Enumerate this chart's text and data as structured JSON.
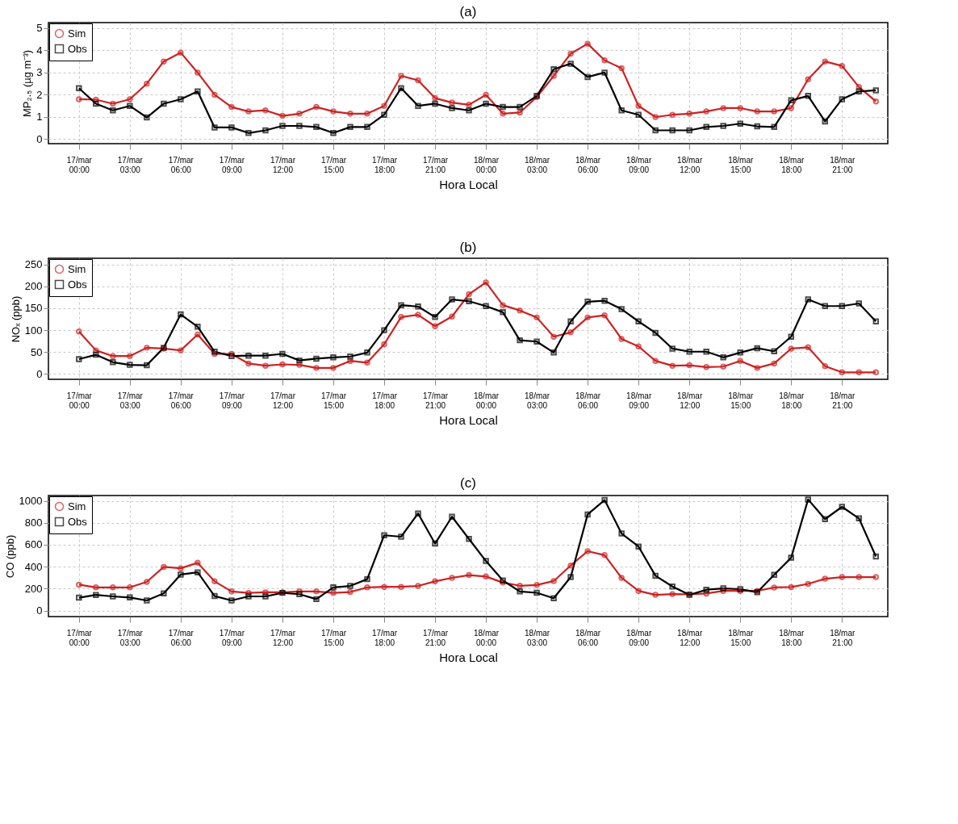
{
  "chart_data": [
    {
      "type": "line",
      "title": "(a)",
      "xlabel": "Hora Local",
      "ylabel": "MP₂.₅ (µg m⁻³)",
      "categories": [
        "17/mar 00:00",
        null,
        null,
        "17/mar 03:00",
        null,
        null,
        "17/mar 06:00",
        null,
        null,
        "17/mar 09:00",
        null,
        null,
        "17/mar 12:00",
        null,
        null,
        "17/mar 15:00",
        null,
        null,
        "17/mar 18:00",
        null,
        null,
        "17/mar 21:00",
        null,
        null,
        "18/mar 00:00",
        null,
        null,
        "18/mar 03:00",
        null,
        null,
        "18/mar 06:00",
        null,
        null,
        "18/mar 09:00",
        null,
        null,
        "18/mar 12:00",
        null,
        null,
        "18/mar 15:00",
        null,
        null,
        "18/mar 18:00",
        null,
        null,
        "18/mar 21:00",
        null,
        null
      ],
      "ylim": [
        -0.2,
        5.25
      ],
      "yticks": [
        0,
        1,
        2,
        3,
        4,
        5
      ],
      "grid": true,
      "legend": "top left",
      "line_style": "solid",
      "series": [
        {
          "name": "Sim",
          "color": "#cc2222",
          "marker": "circle",
          "values": [
            1.8,
            1.78,
            1.6,
            1.8,
            2.5,
            3.5,
            3.9,
            3.0,
            2.0,
            1.45,
            1.25,
            1.3,
            1.05,
            1.15,
            1.45,
            1.25,
            1.15,
            1.15,
            1.5,
            2.85,
            2.65,
            1.85,
            1.65,
            1.55,
            2.0,
            1.15,
            1.2,
            1.9,
            2.85,
            3.85,
            4.3,
            3.55,
            3.2,
            1.5,
            1.0,
            1.1,
            1.15,
            1.25,
            1.4,
            1.4,
            1.25,
            1.25,
            1.4,
            2.7,
            3.5,
            3.3,
            2.35,
            1.7
          ]
        },
        {
          "name": "Obs",
          "color": "#000000",
          "marker": "square",
          "values": [
            2.3,
            1.6,
            1.3,
            1.5,
            0.98,
            1.6,
            1.8,
            2.15,
            0.53,
            0.53,
            0.28,
            0.4,
            0.6,
            0.6,
            0.55,
            0.28,
            0.55,
            0.55,
            1.1,
            2.3,
            1.5,
            1.6,
            1.4,
            1.3,
            1.6,
            1.45,
            1.45,
            1.95,
            3.15,
            3.4,
            2.8,
            3.0,
            1.3,
            1.1,
            0.4,
            0.4,
            0.4,
            0.55,
            0.6,
            0.7,
            0.58,
            0.55,
            1.75,
            1.95,
            0.8,
            1.8,
            2.15,
            2.2
          ]
        }
      ]
    },
    {
      "type": "line",
      "title": "(b)",
      "xlabel": "Hora Local",
      "ylabel": "NOₓ (ppb)",
      "categories": [
        "17/mar 00:00",
        null,
        null,
        "17/mar 03:00",
        null,
        null,
        "17/mar 06:00",
        null,
        null,
        "17/mar 09:00",
        null,
        null,
        "17/mar 12:00",
        null,
        null,
        "17/mar 15:00",
        null,
        null,
        "17/mar 18:00",
        null,
        null,
        "17/mar 21:00",
        null,
        null,
        "18/mar 00:00",
        null,
        null,
        "18/mar 03:00",
        null,
        null,
        "18/mar 06:00",
        null,
        null,
        "18/mar 09:00",
        null,
        null,
        "18/mar 12:00",
        null,
        null,
        "18/mar 15:00",
        null,
        null,
        "18/mar 18:00",
        null,
        null,
        "18/mar 21:00",
        null,
        null
      ],
      "ylim": [
        -12,
        264
      ],
      "yticks": [
        0,
        50,
        100,
        150,
        200,
        250
      ],
      "grid": true,
      "legend": "top left",
      "line_style": "solid",
      "series": [
        {
          "name": "Sim",
          "color": "#cc2222",
          "marker": "circle",
          "values": [
            97,
            54,
            41,
            41,
            60,
            58,
            54,
            90,
            46,
            46,
            24,
            19,
            22,
            21,
            14,
            14,
            30,
            26,
            68,
            130,
            135,
            109,
            131,
            182,
            209,
            157,
            145,
            129,
            85,
            95,
            129,
            134,
            80,
            63,
            30,
            19,
            20,
            16,
            17,
            30,
            14,
            24,
            58,
            61,
            18,
            4,
            4,
            4
          ]
        },
        {
          "name": "Obs",
          "color": "#000000",
          "marker": "square",
          "values": [
            34,
            44,
            27,
            21,
            20,
            60,
            136,
            108,
            51,
            41,
            42,
            42,
            46,
            31,
            35,
            38,
            40,
            49,
            100,
            157,
            154,
            130,
            170,
            166,
            155,
            141,
            77,
            74,
            49,
            120,
            165,
            167,
            148,
            120,
            94,
            58,
            51,
            51,
            38,
            49,
            59,
            52,
            85,
            170,
            155,
            155,
            161,
            120
          ]
        }
      ]
    },
    {
      "type": "line",
      "title": "(c)",
      "xlabel": "Hora Local",
      "ylabel": "CO (ppb)",
      "categories": [
        "17/mar 00:00",
        null,
        null,
        "17/mar 03:00",
        null,
        null,
        "17/mar 06:00",
        null,
        null,
        "17/mar 09:00",
        null,
        null,
        "17/mar 12:00",
        null,
        null,
        "17/mar 15:00",
        null,
        null,
        "17/mar 18:00",
        null,
        null,
        "17/mar 21:00",
        null,
        null,
        "18/mar 00:00",
        null,
        null,
        "18/mar 03:00",
        null,
        null,
        "18/mar 06:00",
        null,
        null,
        "18/mar 09:00",
        null,
        null,
        "18/mar 12:00",
        null,
        null,
        "18/mar 15:00",
        null,
        null,
        "18/mar 18:00",
        null,
        null,
        "18/mar 21:00",
        null,
        null
      ],
      "ylim": [
        -55,
        1048
      ],
      "yticks": [
        0,
        200,
        400,
        600,
        800,
        1000
      ],
      "grid": true,
      "legend": "top left",
      "line_style": "solid",
      "series": [
        {
          "name": "Sim",
          "color": "#cc2222",
          "marker": "circle",
          "values": [
            236,
            211,
            211,
            211,
            261,
            398,
            385,
            435,
            266,
            174,
            161,
            166,
            166,
            174,
            174,
            161,
            169,
            211,
            216,
            216,
            224,
            266,
            298,
            323,
            310,
            255,
            226,
            233,
            269,
            410,
            541,
            505,
            298,
            179,
            143,
            150,
            148,
            155,
            179,
            179,
            179,
            210,
            214,
            243,
            290,
            305,
            305,
            305
          ]
        },
        {
          "name": "Obs",
          "color": "#000000",
          "marker": "square",
          "values": [
            117,
            142,
            129,
            119,
            92,
            157,
            328,
            348,
            132,
            92,
            129,
            129,
            161,
            149,
            104,
            211,
            224,
            286,
            686,
            673,
            885,
            610,
            855,
            653,
            452,
            274,
            174,
            162,
            112,
            305,
            876,
            1007,
            702,
            583,
            317,
            219,
            143,
            190,
            202,
            195,
            167,
            326,
            481,
            1012,
            833,
            945,
            840,
            493
          ]
        }
      ]
    }
  ]
}
